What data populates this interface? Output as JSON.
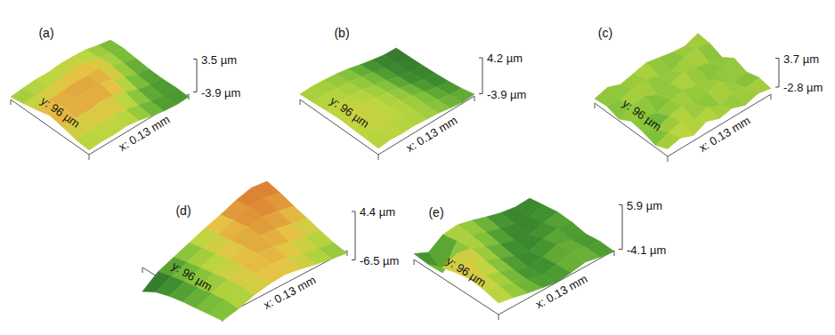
{
  "chart_data": [
    {
      "type": "surface",
      "title": "(a)",
      "x_label": "x: 0.13 mm",
      "y_label": "y: 96 µm",
      "zlim": [
        -3.9,
        3.5
      ],
      "zticks": [
        {
          "value": 3.5,
          "label": "3.5 µm"
        },
        {
          "value": -3.9,
          "label": "-3.9 µm"
        }
      ],
      "z": [
        [
          0.2,
          0.4,
          0.3,
          0.5,
          0.1,
          -0.6,
          -1.2,
          -1.5,
          -1.4
        ],
        [
          0.5,
          0.8,
          0.6,
          0.9,
          0.4,
          -0.3,
          -1.0,
          -1.6,
          -1.3
        ],
        [
          1.2,
          1.6,
          1.4,
          1.9,
          1.5,
          0.6,
          -0.5,
          -1.2,
          -1.5
        ],
        [
          1.8,
          2.2,
          2.4,
          2.1,
          2.3,
          1.4,
          0.2,
          -0.9,
          -1.4
        ],
        [
          1.0,
          1.5,
          1.7,
          2.0,
          1.8,
          1.9,
          0.8,
          -0.4,
          -1.1
        ],
        [
          0.3,
          0.5,
          0.7,
          0.9,
          1.2,
          1.0,
          0.6,
          -0.2,
          -0.8
        ],
        [
          -0.2,
          0.1,
          0.3,
          0.2,
          0.5,
          0.4,
          0.2,
          -0.5,
          -1.0
        ]
      ]
    },
    {
      "type": "surface",
      "title": "(b)",
      "x_label": "x: 0.13 mm",
      "y_label": "y: 96 µm",
      "zlim": [
        -3.9,
        4.2
      ],
      "zticks": [
        {
          "value": 4.2,
          "label": "4.2 µm"
        },
        {
          "value": -3.9,
          "label": "-3.9 µm"
        }
      ],
      "z": [
        [
          0.6,
          0.9,
          0.7,
          0.8,
          0.5,
          0.3,
          -0.2,
          -0.6,
          -0.4
        ],
        [
          0.8,
          1.1,
          1.0,
          0.9,
          0.7,
          0.2,
          -0.4,
          -0.9,
          -1.1
        ],
        [
          0.9,
          1.3,
          1.2,
          1.0,
          0.6,
          0.1,
          -0.7,
          -1.3,
          -1.6
        ],
        [
          1.1,
          1.4,
          1.1,
          0.8,
          0.4,
          -0.3,
          -1.1,
          -1.7,
          -1.9
        ],
        [
          0.9,
          1.0,
          0.9,
          0.6,
          0.1,
          -0.6,
          -1.4,
          -2.0,
          -2.1
        ],
        [
          0.6,
          0.8,
          0.5,
          0.3,
          -0.2,
          -0.9,
          -1.6,
          -2.2,
          -2.3
        ],
        [
          0.4,
          0.5,
          0.3,
          0.0,
          -0.5,
          -1.2,
          -1.8,
          -2.3,
          -2.4
        ]
      ]
    },
    {
      "type": "surface",
      "title": "(c)",
      "x_label": "x: 0.13 mm",
      "y_label": "y: 96 µm",
      "zlim": [
        -2.8,
        3.7
      ],
      "zticks": [
        {
          "value": 3.7,
          "label": "3.7 µm"
        },
        {
          "value": -2.8,
          "label": "-2.8 µm"
        }
      ],
      "z": [
        [
          0.9,
          1.6,
          0.4,
          1.8,
          0.7,
          1.3,
          0.2,
          1.1,
          0.5
        ],
        [
          -0.3,
          0.8,
          1.5,
          0.1,
          1.2,
          -0.2,
          0.9,
          0.3,
          1.0
        ],
        [
          0.6,
          -0.5,
          0.7,
          1.4,
          -0.1,
          0.8,
          1.6,
          -0.4,
          0.2
        ],
        [
          1.1,
          0.3,
          -0.6,
          0.5,
          1.0,
          0.4,
          -0.3,
          0.9,
          1.3
        ],
        [
          -0.4,
          0.9,
          1.2,
          -0.2,
          0.6,
          1.5,
          0.7,
          0.0,
          -0.5
        ],
        [
          0.5,
          0.1,
          0.8,
          1.1,
          0.3,
          -0.4,
          1.0,
          1.4,
          0.6
        ],
        [
          0.2,
          1.0,
          -0.1,
          0.6,
          1.3,
          0.7,
          0.1,
          -0.2,
          0.9
        ]
      ]
    },
    {
      "type": "surface",
      "title": "(d)",
      "x_label": "x: 0.13 mm",
      "y_label": "y: 96 µm",
      "zlim": [
        -6.5,
        4.4
      ],
      "zticks": [
        {
          "value": 4.4,
          "label": "4.4 µm"
        },
        {
          "value": -6.5,
          "label": "-6.5 µm"
        }
      ],
      "z": [
        [
          -1.8,
          -1.0,
          0.2,
          0.9,
          1.2,
          0.6,
          -0.2,
          -0.8,
          -1.4
        ],
        [
          -2.2,
          -0.8,
          0.6,
          1.4,
          1.8,
          1.3,
          0.4,
          -0.3,
          -0.9
        ],
        [
          -2.6,
          -1.2,
          0.2,
          1.2,
          2.2,
          2.0,
          1.2,
          0.6,
          0.0
        ],
        [
          -3.0,
          -1.8,
          -0.4,
          0.8,
          1.9,
          2.6,
          2.3,
          1.6,
          1.0
        ],
        [
          -3.6,
          -2.2,
          -0.9,
          0.4,
          1.5,
          2.8,
          3.2,
          2.6,
          1.9
        ],
        [
          -4.5,
          -2.8,
          -1.5,
          -0.2,
          1.0,
          2.4,
          3.6,
          3.9,
          3.0
        ],
        [
          -6.2,
          -3.6,
          -2.2,
          -0.8,
          0.6,
          1.8,
          3.2,
          4.2,
          3.8
        ]
      ]
    },
    {
      "type": "surface",
      "title": "(e)",
      "x_label": "x: 0.13 mm",
      "y_label": "y: 96 µm",
      "zlim": [
        -4.1,
        5.9
      ],
      "zticks": [
        {
          "value": 5.9,
          "label": "5.9 µm"
        },
        {
          "value": -4.1,
          "label": "-4.1 µm"
        }
      ],
      "z": [
        [
          1.8,
          1.2,
          0.4,
          -0.2,
          -0.8,
          -0.4,
          0.2,
          -0.5,
          -1.0
        ],
        [
          2.6,
          1.8,
          0.6,
          -0.5,
          -1.2,
          -0.6,
          0.4,
          -0.3,
          -0.8
        ],
        [
          3.0,
          2.2,
          1.0,
          -0.3,
          -1.5,
          -1.0,
          0.0,
          -0.8,
          -1.2
        ],
        [
          2.4,
          3.2,
          1.6,
          0.2,
          -1.0,
          -1.8,
          -0.8,
          -0.2,
          -0.6
        ],
        [
          1.5,
          2.8,
          2.2,
          0.8,
          -0.4,
          -1.4,
          -1.9,
          -1.0,
          -0.4
        ],
        [
          0.2,
          -3.5,
          1.8,
          1.4,
          0.2,
          -0.8,
          -1.6,
          -1.8,
          -0.9
        ],
        [
          0.5,
          -1.0,
          1.2,
          1.6,
          0.8,
          -0.2,
          -1.1,
          -1.6,
          -1.4
        ]
      ]
    }
  ]
}
